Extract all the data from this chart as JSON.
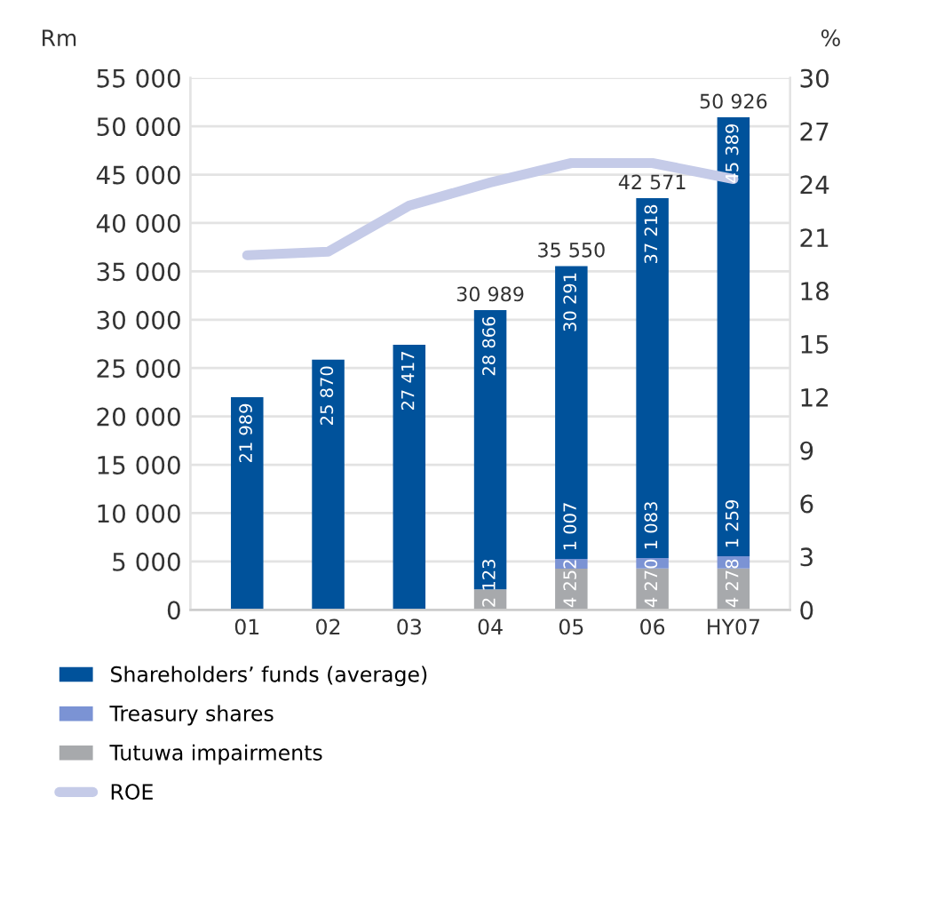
{
  "chart_data": {
    "type": "bar",
    "stacked": true,
    "ylabel": "Rm",
    "y2label": "%",
    "categories": [
      "01",
      "02",
      "03",
      "04",
      "05",
      "06",
      "HY07"
    ],
    "series": [
      {
        "name": "Tutuwa impairments",
        "color": "#a7a9ac",
        "values": [
          0,
          0,
          0,
          2123,
          4252,
          4270,
          4278
        ],
        "value_labels": [
          null,
          null,
          null,
          "2 123",
          "4 252",
          "4 270",
          "4 278"
        ]
      },
      {
        "name": "Treasury shares",
        "color": "#7b93d4",
        "values": [
          0,
          0,
          0,
          0,
          1007,
          1083,
          1259
        ],
        "value_labels": [
          null,
          null,
          null,
          null,
          "1 007",
          "1 083",
          "1 259"
        ]
      },
      {
        "name": "Shareholders’ funds (average)",
        "color": "#00529b",
        "values": [
          21989,
          25870,
          27417,
          28866,
          30291,
          37218,
          45389
        ],
        "value_labels": [
          "21 989",
          "25 870",
          "27 417",
          "28 866",
          "30 291",
          "37 218",
          "45 389"
        ]
      },
      {
        "name": "ROE",
        "type": "line",
        "axis": "y2",
        "color": "#c5cbe8",
        "values": [
          20.0,
          20.2,
          22.8,
          24.1,
          25.2,
          25.2,
          24.3
        ]
      }
    ],
    "totals": [
      null,
      null,
      null,
      "30 989",
      "35 550",
      "42 571",
      "50 926"
    ],
    "ylim": [
      0,
      55000
    ],
    "yticks": [
      0,
      {
        "value": 5000,
        "label": "5 000"
      },
      {
        "value": 10000,
        "label": "10 000"
      },
      {
        "value": 15000,
        "label": "15 000"
      },
      {
        "value": 20000,
        "label": "20 000"
      },
      {
        "value": 25000,
        "label": "25 000"
      },
      {
        "value": 30000,
        "label": "30 000"
      },
      {
        "value": 35000,
        "label": "35 000"
      },
      {
        "value": 40000,
        "label": "40 000"
      },
      {
        "value": 45000,
        "label": "45 000"
      },
      {
        "value": 50000,
        "label": "50 000"
      },
      {
        "value": 55000,
        "label": "55 000"
      }
    ],
    "y2lim": [
      0,
      30
    ],
    "y2ticks": [
      0,
      3,
      6,
      9,
      12,
      15,
      18,
      21,
      24,
      27,
      30
    ],
    "grid": "y",
    "legend": "bottom",
    "marker": "none",
    "line_style": "solid"
  }
}
